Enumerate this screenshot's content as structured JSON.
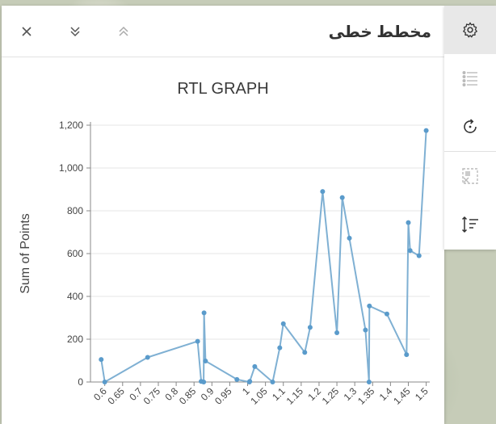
{
  "panel": {
    "title": "مخطط خطى",
    "close_icon": "close-icon",
    "collapse_icon": "chevrons-down-icon",
    "expand_icon": "chevrons-up-icon"
  },
  "sidebar": {
    "items": [
      {
        "name": "settings-icon",
        "active": true
      },
      {
        "name": "list-icon",
        "active": false,
        "disabled": true
      },
      {
        "name": "refresh-icon",
        "active": false
      },
      {
        "name": "filter-selection-icon",
        "active": false,
        "disabled": true
      },
      {
        "name": "sort-icon",
        "active": false
      }
    ]
  },
  "colors": {
    "line": "#7fb0d3",
    "point": "#5a9bcb",
    "grid": "#e4e4e4",
    "axis": "#888888",
    "text": "#444444"
  },
  "chart_data": {
    "type": "line",
    "title": "RTL GRAPH",
    "xlabel": "",
    "ylabel": "Sum of Points",
    "xlim": [
      0.56,
      1.51
    ],
    "ylim": [
      0,
      1200
    ],
    "grid": true,
    "x_ticks": [
      "0.6",
      "0.65",
      "0.7",
      "0.75",
      "0.8",
      "0.85",
      "0.9",
      "0.95",
      "1",
      "1.05",
      "1.1",
      "1.15",
      "1.2",
      "1.25",
      "1.3",
      "1.35",
      "1.4",
      "1.45",
      "1.5"
    ],
    "y_ticks": [
      "0",
      "200",
      "400",
      "600",
      "800",
      "1,000",
      "1,200"
    ],
    "points": [
      {
        "x": 0.59,
        "y": 105
      },
      {
        "x": 0.6,
        "y": 0
      },
      {
        "x": 0.72,
        "y": 115
      },
      {
        "x": 0.86,
        "y": 190
      },
      {
        "x": 0.87,
        "y": 3
      },
      {
        "x": 0.877,
        "y": 0
      },
      {
        "x": 0.878,
        "y": 323
      },
      {
        "x": 0.882,
        "y": 98
      },
      {
        "x": 0.97,
        "y": 12
      },
      {
        "x": 1.005,
        "y": 0
      },
      {
        "x": 1.006,
        "y": 3
      },
      {
        "x": 1.02,
        "y": 72
      },
      {
        "x": 1.07,
        "y": 0
      },
      {
        "x": 1.09,
        "y": 160
      },
      {
        "x": 1.1,
        "y": 272
      },
      {
        "x": 1.16,
        "y": 138
      },
      {
        "x": 1.175,
        "y": 255
      },
      {
        "x": 1.21,
        "y": 890
      },
      {
        "x": 1.25,
        "y": 230
      },
      {
        "x": 1.265,
        "y": 862
      },
      {
        "x": 1.285,
        "y": 672
      },
      {
        "x": 1.33,
        "y": 243
      },
      {
        "x": 1.34,
        "y": 0
      },
      {
        "x": 1.341,
        "y": 355
      },
      {
        "x": 1.39,
        "y": 318
      },
      {
        "x": 1.445,
        "y": 128
      },
      {
        "x": 1.45,
        "y": 745
      },
      {
        "x": 1.455,
        "y": 614
      },
      {
        "x": 1.48,
        "y": 590
      },
      {
        "x": 1.5,
        "y": 1175
      }
    ]
  }
}
